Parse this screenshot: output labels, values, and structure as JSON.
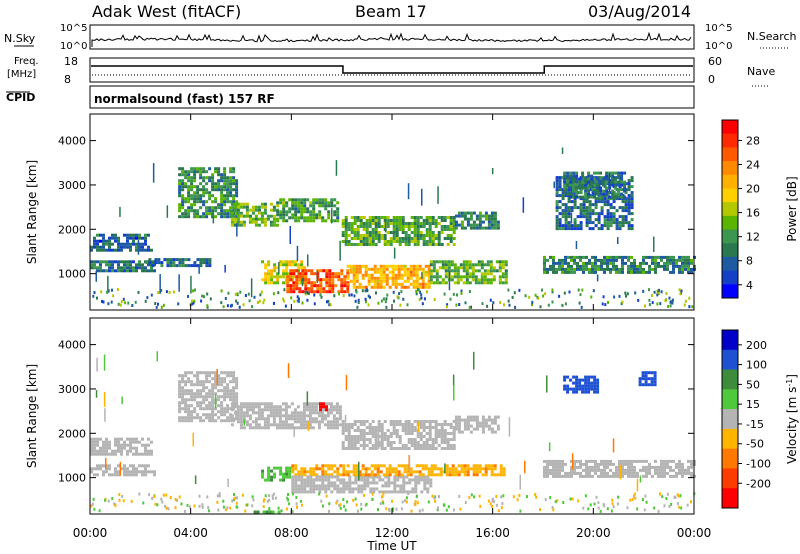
{
  "header": {
    "station": "Adak West (fitACF)",
    "beam": "Beam 17",
    "date": "03/Aug/2014"
  },
  "status_panels": {
    "nsky": {
      "label": "N.Sky",
      "ticks": [
        "10^5",
        "10^0"
      ],
      "right_label": "N.Search",
      "right_ticks": [
        "10^5",
        "10^0"
      ]
    },
    "freq": {
      "label_line1": "Freq.",
      "label_line2": "[MHz]",
      "ticks": [
        "18",
        "8"
      ],
      "right_label": "Nave",
      "right_ticks": [
        "60",
        "0"
      ]
    },
    "cpid": {
      "label": "CPID",
      "text": "normalsound (fast) 157 RF"
    }
  },
  "axes": {
    "ylabel": "Slant Range [km]",
    "yticks": [
      "4000",
      "3000",
      "2000",
      "1000"
    ],
    "xticks": [
      "00:00",
      "04:00",
      "08:00",
      "12:00",
      "16:00",
      "20:00",
      "00:00"
    ],
    "xlabel": "Time UT"
  },
  "colorbars": {
    "power": {
      "title": "Power [dB]",
      "labels": [
        "28",
        "24",
        "20",
        "16",
        "12",
        "8",
        "4"
      ],
      "colors": [
        "#ff0000",
        "#ff2a00",
        "#ff5a00",
        "#ff8a00",
        "#ffb000",
        "#ffd000",
        "#b4c800",
        "#5ab400",
        "#3c9650",
        "#2a7850",
        "#1e5aa0",
        "#1440c8",
        "#0000ff"
      ]
    },
    "velocity": {
      "title_main": "Velocity [m s",
      "title_sup": "-1",
      "title_end": "]",
      "labels": [
        "200",
        "100",
        "50",
        "15",
        "-15",
        "-50",
        "-100",
        "-200"
      ],
      "colors": [
        "#0000c8",
        "#1e50d2",
        "#3c8c3c",
        "#50c83c",
        "#b4b4b4",
        "#ffb400",
        "#ff7800",
        "#ff3c00",
        "#ff0000"
      ]
    }
  },
  "chart_data": [
    {
      "type": "heatmap",
      "name": "power",
      "x_range_hours": [
        0,
        24
      ],
      "y_range_km": [
        180,
        4600
      ],
      "unit": "dB",
      "regions": [
        {
          "t": [
            0.0,
            2.6
          ],
          "r": [
            1050,
            1300
          ],
          "v": 7
        },
        {
          "t": [
            0.0,
            2.4
          ],
          "r": [
            1500,
            1900
          ],
          "v": 5
        },
        {
          "t": [
            2.2,
            4.8
          ],
          "r": [
            1200,
            1350
          ],
          "v": 6
        },
        {
          "t": [
            3.5,
            5.8
          ],
          "r": [
            2300,
            3400
          ],
          "v": 9
        },
        {
          "t": [
            5.6,
            7.5
          ],
          "r": [
            2100,
            2600
          ],
          "v": 12
        },
        {
          "t": [
            7.4,
            9.9
          ],
          "r": [
            2200,
            2700
          ],
          "v": 10
        },
        {
          "t": [
            6.8,
            8.5
          ],
          "r": [
            800,
            1300
          ],
          "v": 16
        },
        {
          "t": [
            7.8,
            10.2
          ],
          "r": [
            620,
            1100
          ],
          "v": 26
        },
        {
          "t": [
            10.2,
            13.5
          ],
          "r": [
            700,
            1200
          ],
          "v": 20
        },
        {
          "t": [
            10.0,
            14.5
          ],
          "r": [
            1650,
            2300
          ],
          "v": 11
        },
        {
          "t": [
            13.5,
            16.5
          ],
          "r": [
            780,
            1300
          ],
          "v": 12
        },
        {
          "t": [
            14.5,
            16.2
          ],
          "r": [
            2000,
            2400
          ],
          "v": 8
        },
        {
          "t": [
            18.5,
            21.5
          ],
          "r": [
            2000,
            3200
          ],
          "v": 6
        },
        {
          "t": [
            18.8,
            21.2
          ],
          "r": [
            2700,
            3300
          ],
          "v": 7
        },
        {
          "t": [
            18.0,
            24.0
          ],
          "r": [
            1000,
            1400
          ],
          "v": 8
        }
      ]
    },
    {
      "type": "heatmap",
      "name": "velocity",
      "x_range_hours": [
        0,
        24
      ],
      "y_range_km": [
        180,
        4600
      ],
      "unit": "m s^-1",
      "regions": [
        {
          "t": [
            0.0,
            2.6
          ],
          "r": [
            1050,
            1300
          ],
          "v": 0
        },
        {
          "t": [
            0.0,
            2.4
          ],
          "r": [
            1500,
            1900
          ],
          "v": 0
        },
        {
          "t": [
            3.5,
            5.8
          ],
          "r": [
            2300,
            3400
          ],
          "v": 0
        },
        {
          "t": [
            5.6,
            9.9
          ],
          "r": [
            2100,
            2700
          ],
          "v": 0
        },
        {
          "t": [
            6.8,
            8.0
          ],
          "r": [
            950,
            1250
          ],
          "v": 40
        },
        {
          "t": [
            8.0,
            10.2
          ],
          "r": [
            1050,
            1300
          ],
          "v": -40
        },
        {
          "t": [
            8.0,
            13.5
          ],
          "r": [
            700,
            1050
          ],
          "v": 0
        },
        {
          "t": [
            10.2,
            16.5
          ],
          "r": [
            1050,
            1300
          ],
          "v": -40
        },
        {
          "t": [
            9.1,
            9.4
          ],
          "r": [
            2500,
            2700
          ],
          "v": -250
        },
        {
          "t": [
            10.0,
            14.5
          ],
          "r": [
            1650,
            2300
          ],
          "v": 0
        },
        {
          "t": [
            14.5,
            16.2
          ],
          "r": [
            2000,
            2400
          ],
          "v": 0
        },
        {
          "t": [
            18.0,
            24.0
          ],
          "r": [
            1000,
            1400
          ],
          "v": 0
        },
        {
          "t": [
            18.8,
            20.2
          ],
          "r": [
            2900,
            3300
          ],
          "v": 180
        },
        {
          "t": [
            21.8,
            22.4
          ],
          "r": [
            3100,
            3400
          ],
          "v": 150
        },
        {
          "t": [
            6.5,
            7.5
          ],
          "r": [
            200,
            260
          ],
          "v": 40
        }
      ]
    }
  ]
}
